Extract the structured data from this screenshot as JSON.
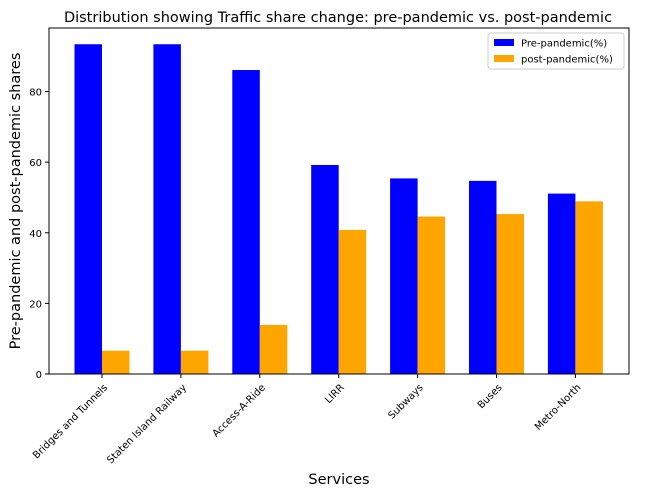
{
  "chart_data": {
    "type": "bar",
    "title": "Distribution showing Traffic share change: pre-pandemic vs. post-pandemic",
    "xlabel": "Services",
    "ylabel": "Pre-pandemic and post-pandemic shares",
    "categories": [
      "Bridges and Tunnels",
      "Staten Island Railway",
      "Access-A-Ride",
      "LIRR",
      "Subways",
      "Buses",
      "Metro-North"
    ],
    "series": [
      {
        "name": "Pre-pandemic(%)",
        "color": "#0000ff",
        "values": [
          93.4,
          93.4,
          86.1,
          59.2,
          55.4,
          54.7,
          51.1
        ]
      },
      {
        "name": "post-pandemic(%)",
        "color": "#ffa500",
        "values": [
          6.6,
          6.6,
          13.9,
          40.8,
          44.6,
          45.3,
          48.9
        ]
      }
    ],
    "ylim": [
      0,
      98
    ],
    "yticks": [
      0,
      20,
      40,
      60,
      80
    ],
    "legend_position": "top-right",
    "grid": false
  }
}
